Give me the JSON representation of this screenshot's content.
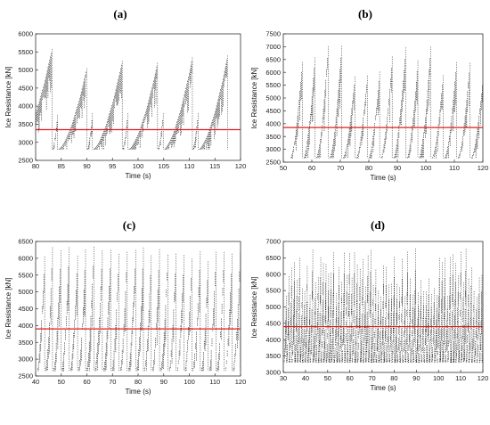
{
  "chart_data": [
    {
      "panel": "(a)",
      "type": "line",
      "xlabel": "Time (s)",
      "ylabel": "Ice Resistance [kN]",
      "xlim": [
        80,
        120
      ],
      "ylim": [
        2500,
        6000
      ],
      "xticks": [
        80,
        85,
        90,
        95,
        100,
        105,
        110,
        115,
        120
      ],
      "yticks": [
        2500,
        3000,
        3500,
        4000,
        4500,
        5000,
        5500,
        6000
      ],
      "mean_line": 3350,
      "mean_line_color": "#e41a1c",
      "series_color": "#111111",
      "cycle_period_s": 6.9,
      "cycle_start_s": 76.5,
      "sawtooth_low": 2800,
      "peaks": [
        {
          "x": 83.2,
          "y": 5580
        },
        {
          "x": 84.3,
          "y": 3750
        },
        {
          "x": 90.0,
          "y": 5050
        },
        {
          "x": 91.1,
          "y": 3800
        },
        {
          "x": 96.9,
          "y": 5250
        },
        {
          "x": 98.0,
          "y": 3800
        },
        {
          "x": 103.8,
          "y": 5200
        },
        {
          "x": 104.9,
          "y": 3800
        },
        {
          "x": 110.6,
          "y": 5350
        },
        {
          "x": 111.7,
          "y": 3800
        },
        {
          "x": 117.5,
          "y": 5400
        }
      ],
      "grid": false
    },
    {
      "panel": "(b)",
      "type": "line",
      "xlabel": "Time (s)",
      "ylabel": "Ice Resistance [kN]",
      "xlim": [
        50,
        120
      ],
      "ylim": [
        2500,
        7500
      ],
      "xticks": [
        50,
        60,
        70,
        80,
        90,
        100,
        110,
        120
      ],
      "yticks": [
        2500,
        3000,
        3500,
        4000,
        4500,
        5000,
        5500,
        6000,
        6500,
        7000,
        7500
      ],
      "mean_line": 3850,
      "mean_line_color": "#e41a1c",
      "series_color": "#111111",
      "cycle_period_s": 4.6,
      "cycle_start_s": 52.5,
      "sawtooth_low": 2650,
      "peak_range": [
        5800,
        7050
      ],
      "grid": false
    },
    {
      "panel": "(c)",
      "type": "line",
      "xlabel": "Time (s)",
      "ylabel": "Ice Resistance [kN]",
      "xlim": [
        40,
        120
      ],
      "ylim": [
        2500,
        6500
      ],
      "xticks": [
        40,
        50,
        60,
        70,
        80,
        90,
        100,
        110,
        120
      ],
      "yticks": [
        2500,
        3000,
        3500,
        4000,
        4500,
        5000,
        5500,
        6000,
        6500
      ],
      "mean_line": 3900,
      "mean_line_color": "#e41a1c",
      "series_color": "#111111",
      "cycle_period_s": 3.2,
      "cycle_start_s": 40.5,
      "sawtooth_low": 2650,
      "peak_range": [
        5900,
        6400
      ],
      "grid": false
    },
    {
      "panel": "(d)",
      "type": "line",
      "xlabel": "Time (s)",
      "ylabel": "Ice Resistance [kN]",
      "xlim": [
        30,
        120
      ],
      "ylim": [
        3000,
        7000
      ],
      "xticks": [
        30,
        40,
        50,
        60,
        70,
        80,
        90,
        100,
        110,
        120
      ],
      "yticks": [
        3000,
        3500,
        4000,
        4500,
        5000,
        5500,
        6000,
        6500,
        7000
      ],
      "mean_line": 4400,
      "mean_line_color": "#e41a1c",
      "series_color": "#111111",
      "cycle_period_s": 1.2,
      "cycle_start_s": 30.3,
      "sawtooth_low": 3300,
      "peak_range": [
        5300,
        6900
      ],
      "grid": false
    }
  ]
}
